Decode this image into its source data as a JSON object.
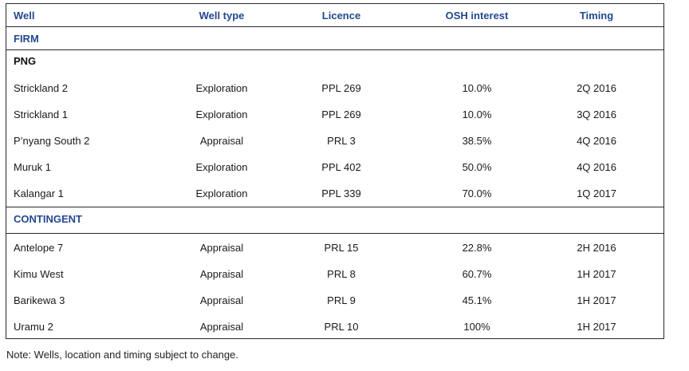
{
  "header": {
    "well": "Well",
    "well_type": "Well type",
    "licence": "Licence",
    "osh_interest": "OSH interest",
    "timing": "Timing"
  },
  "sections": {
    "firm": {
      "label": "FIRM",
      "subheading": "PNG",
      "rows": [
        {
          "well": "Strickland 2",
          "type": "Exploration",
          "licence": "PPL 269",
          "interest": "10.0%",
          "timing": "2Q 2016"
        },
        {
          "well": "Strickland 1",
          "type": "Exploration",
          "licence": "PPL 269",
          "interest": "10.0%",
          "timing": "3Q 2016"
        },
        {
          "well": "P’nyang South 2",
          "type": "Appraisal",
          "licence": "PRL 3",
          "interest": "38.5%",
          "timing": "4Q 2016"
        },
        {
          "well": "Muruk 1",
          "type": "Exploration",
          "licence": "PPL 402",
          "interest": "50.0%",
          "timing": "4Q 2016"
        },
        {
          "well": "Kalangar 1",
          "type": "Exploration",
          "licence": "PPL 339",
          "interest": "70.0%",
          "timing": "1Q 2017"
        }
      ]
    },
    "contingent": {
      "label": "CONTINGENT",
      "rows": [
        {
          "well": "Antelope 7",
          "type": "Appraisal",
          "licence": "PRL 15",
          "interest": "22.8%",
          "timing": "2H 2016"
        },
        {
          "well": "Kimu West",
          "type": "Appraisal",
          "licence": "PRL 8",
          "interest": "60.7%",
          "timing": "1H 2017"
        },
        {
          "well": "Barikewa 3",
          "type": "Appraisal",
          "licence": "PRL 9",
          "interest": "45.1%",
          "timing": "1H 2017"
        },
        {
          "well": "Uramu 2",
          "type": "Appraisal",
          "licence": "PRL 10",
          "interest": "100%",
          "timing": "1H 2017"
        }
      ]
    }
  },
  "note": "Note: Wells, location and timing subject to change."
}
